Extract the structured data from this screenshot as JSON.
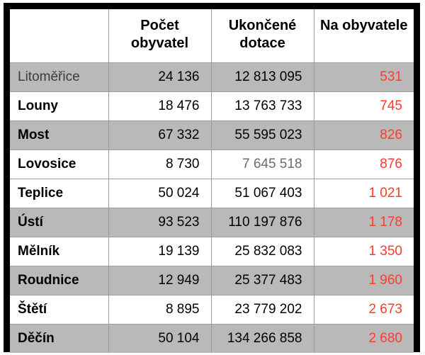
{
  "table": {
    "headers": [
      "",
      "Počet\nobyvatel",
      "Ukončené\ndotace",
      "Na obyvatele"
    ],
    "rows": [
      {
        "city": "Litoměřice",
        "population": "24 136",
        "grants": "12 813 095",
        "per_capita": "531"
      },
      {
        "city": "Louny",
        "population": "18 476",
        "grants": "13 763 733",
        "per_capita": "745"
      },
      {
        "city": "Most",
        "population": "67 332",
        "grants": "55 595 023",
        "per_capita": "826"
      },
      {
        "city": "Lovosice",
        "population": "8 730",
        "grants": "7 645 518",
        "per_capita": "876"
      },
      {
        "city": "Teplice",
        "population": "50 024",
        "grants": "51 067 403",
        "per_capita": "1 021"
      },
      {
        "city": "Ústí",
        "population": "93 523",
        "grants": "110 197 876",
        "per_capita": "1 178"
      },
      {
        "city": "Mělník",
        "population": "19 139",
        "grants": "25 832 083",
        "per_capita": "1 350"
      },
      {
        "city": "Roudnice",
        "population": "12 949",
        "grants": "25 377 483",
        "per_capita": "1 960"
      },
      {
        "city": "Štětí",
        "population": "8 895",
        "grants": "23 779 202",
        "per_capita": "2 673"
      },
      {
        "city": "Děčín",
        "population": "50 104",
        "grants": "134 266 858",
        "per_capita": "2 680"
      }
    ]
  },
  "colors": {
    "accent_red": "#ff3b30",
    "row_gray": "#b9b9b9",
    "muted_number_gray": "#6d6d6d",
    "grid_line_gray": "#9c9c9c",
    "frame_black": "#000000"
  },
  "chart_data": {
    "type": "table",
    "title": "",
    "columns": [
      "",
      "Počet obyvatel",
      "Ukončené dotace",
      "Na obyvatele"
    ],
    "rows": [
      [
        "Litoměřice",
        24136,
        12813095,
        531
      ],
      [
        "Louny",
        18476,
        13763733,
        745
      ],
      [
        "Most",
        67332,
        55595023,
        826
      ],
      [
        "Lovosice",
        8730,
        7645518,
        876
      ],
      [
        "Teplice",
        50024,
        51067403,
        1021
      ],
      [
        "Ústí",
        93523,
        110197876,
        1178
      ],
      [
        "Mělník",
        19139,
        25832083,
        1350
      ],
      [
        "Roudnice",
        12949,
        25377483,
        1960
      ],
      [
        "Štětí",
        8895,
        23779202,
        2673
      ],
      [
        "Děčín",
        50104,
        134266858,
        2680
      ]
    ],
    "layout_hints": {
      "shaded_row_indices": [
        0,
        2,
        5,
        7,
        9
      ],
      "per_capita_color": "#ff3b30",
      "header_alignment": "center",
      "numbers_alignment": "right"
    }
  }
}
